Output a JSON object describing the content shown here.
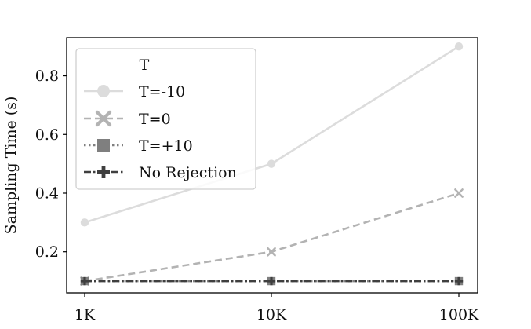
{
  "chart_data": {
    "type": "line",
    "title": "",
    "xlabel": "",
    "ylabel": "Sampling Time (s)",
    "categories": [
      "1K",
      "10K",
      "100K"
    ],
    "ylim": [
      0.06,
      0.93
    ],
    "yticks": [
      0.2,
      0.4,
      0.6,
      0.8
    ],
    "ytick_labels": [
      "0.2",
      "0.4",
      "0.6",
      "0.8"
    ],
    "grid": false,
    "legend": {
      "title": "T",
      "placement": "top-left"
    },
    "series": [
      {
        "name": "T=-10",
        "values": [
          0.3,
          0.5,
          0.9
        ],
        "color": "#dcdcdc",
        "dash": "solid",
        "marker": "circle"
      },
      {
        "name": "T=0",
        "values": [
          0.1,
          0.2,
          0.4
        ],
        "color": "#b3b3b3",
        "dash": "dashed",
        "marker": "x"
      },
      {
        "name": "T=+10",
        "values": [
          0.1,
          0.1,
          0.1
        ],
        "color": "#7f7f7f",
        "dash": "dotted",
        "marker": "square"
      },
      {
        "name": "No Rejection",
        "values": [
          0.1,
          0.1,
          0.1
        ],
        "color": "#3f3f3f",
        "dash": "dashdot",
        "marker": "plus"
      }
    ]
  }
}
